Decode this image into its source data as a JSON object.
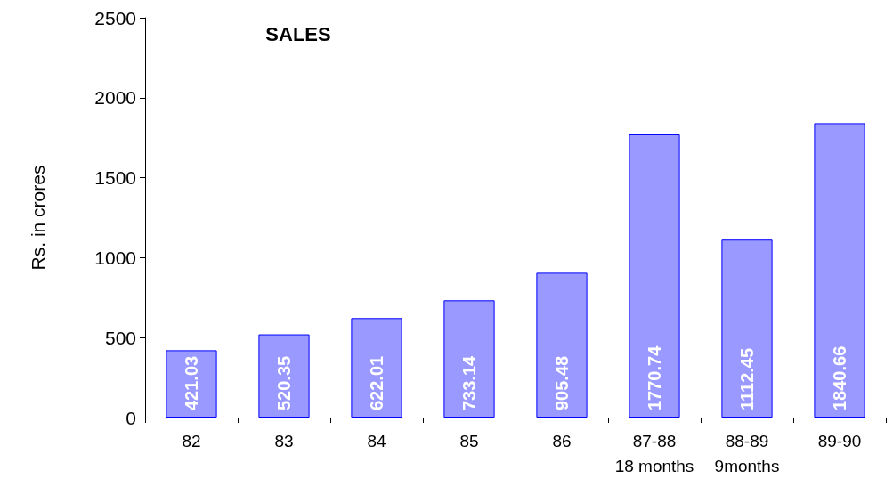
{
  "chart_data": {
    "type": "bar",
    "title": "SALES",
    "ylabel": "Rs. in crores",
    "categories": [
      "82",
      "83",
      "84",
      "85",
      "86",
      "87-88\n18 months",
      "88-89\n9months",
      "89-90"
    ],
    "values": [
      421.03,
      520.35,
      622.01,
      733.14,
      905.48,
      1770.74,
      1112.45,
      1840.66
    ],
    "color": "#9999ff",
    "ylim": [
      0,
      2500
    ],
    "yticks": [
      0,
      500,
      1000,
      1500,
      2000,
      2500
    ],
    "grid": false,
    "data_labels": true
  }
}
